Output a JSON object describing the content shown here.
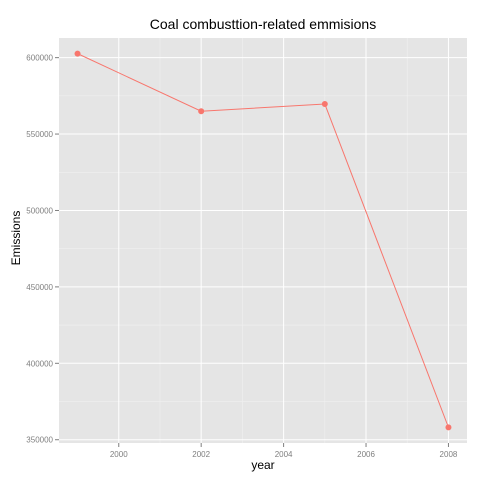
{
  "chart_data": {
    "type": "line",
    "title": "Coal combusttion-related emmisions",
    "xlabel": "year",
    "ylabel": "Emissions",
    "x": [
      1999,
      2002,
      2005,
      2008
    ],
    "series": [
      {
        "values": [
          602624,
          564940,
          569654,
          358084
        ],
        "color": "#F8766D"
      }
    ],
    "xlim": [
      1998.55,
      2008.45
    ],
    "ylim": [
      347857,
      612851
    ],
    "x_ticks": [
      2000,
      2002,
      2004,
      2006,
      2008
    ],
    "y_ticks": [
      350000,
      400000,
      450000,
      500000,
      550000,
      600000
    ],
    "x_tick_labels": [
      "2000",
      "2002",
      "2004",
      "2006",
      "2008"
    ],
    "y_tick_labels": [
      "350000",
      "400000",
      "450000",
      "500000",
      "550000",
      "600000"
    ],
    "grid": true,
    "panel_color": "#E5E5E5"
  }
}
